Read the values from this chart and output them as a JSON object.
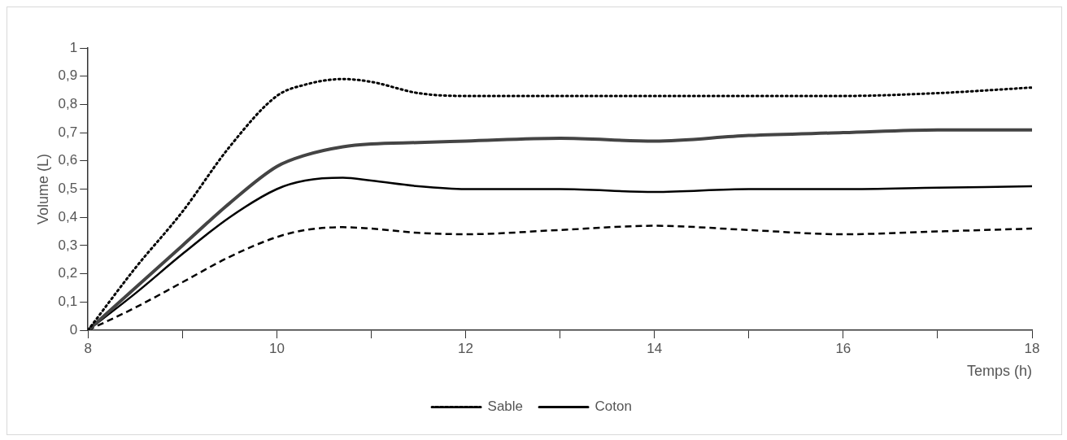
{
  "chart_data": {
    "type": "line",
    "xlabel": "Temps (h)",
    "ylabel": "Volume (L)",
    "x": [
      8,
      8.5,
      9,
      9.5,
      10,
      10.3,
      10.7,
      11,
      11.5,
      12,
      13,
      14,
      15,
      16,
      17,
      18
    ],
    "series": [
      {
        "name": "Sable",
        "color": "#000000",
        "line_style": "dotted",
        "values": [
          0,
          0.22,
          0.42,
          0.65,
          0.83,
          0.87,
          0.89,
          0.88,
          0.84,
          0.83,
          0.83,
          0.83,
          0.83,
          0.83,
          0.84,
          0.86
        ]
      },
      {
        "color": "#444444",
        "line_style": "solid",
        "values": [
          0,
          0.15,
          0.3,
          0.45,
          0.58,
          0.62,
          0.65,
          0.66,
          0.665,
          0.67,
          0.68,
          0.67,
          0.69,
          0.7,
          0.71,
          0.71
        ]
      },
      {
        "name": "Coton",
        "color": "#000000",
        "line_style": "solid",
        "values": [
          0,
          0.13,
          0.27,
          0.4,
          0.5,
          0.53,
          0.54,
          0.53,
          0.51,
          0.5,
          0.5,
          0.49,
          0.5,
          0.5,
          0.505,
          0.51
        ]
      },
      {
        "color": "#000000",
        "line_style": "dashed",
        "values": [
          0,
          0.08,
          0.17,
          0.26,
          0.33,
          0.355,
          0.365,
          0.36,
          0.345,
          0.34,
          0.355,
          0.37,
          0.355,
          0.34,
          0.35,
          0.36
        ]
      }
    ],
    "xlim": [
      8,
      18
    ],
    "xticks": [
      8,
      {
        "value": 9,
        "label": null
      },
      10,
      {
        "value": 11,
        "label": null
      },
      12,
      {
        "value": 13,
        "label": null
      },
      14,
      {
        "value": 15,
        "label": null
      },
      16,
      {
        "value": 17,
        "label": null
      },
      18
    ],
    "ylim": [
      0,
      1
    ],
    "yticks": [
      0,
      {
        "value": 0.1,
        "label": "0,1"
      },
      {
        "value": 0.2,
        "label": "0,2"
      },
      {
        "value": 0.3,
        "label": "0,3"
      },
      {
        "value": 0.4,
        "label": "0,4"
      },
      {
        "value": 0.5,
        "label": "0,5"
      },
      {
        "value": 0.6,
        "label": "0,6"
      },
      {
        "value": 0.7,
        "label": "0,7"
      },
      {
        "value": 0.8,
        "label": "0,8"
      },
      {
        "value": 0.9,
        "label": "0,9"
      },
      1
    ],
    "grid": false,
    "legend": "bottom",
    "marker": "none"
  }
}
